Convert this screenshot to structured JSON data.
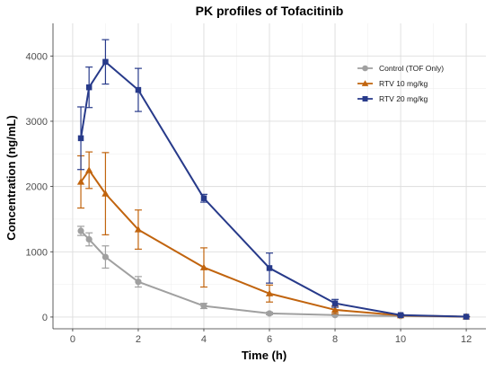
{
  "chart_data": {
    "type": "line",
    "title": "PK profiles of Tofacitinib",
    "xlabel": "Time (h)",
    "ylabel": "Concentration (ng/mL)",
    "xlim": [
      -0.6,
      12.6
    ],
    "ylim": [
      -180,
      4500
    ],
    "xticks": [
      0,
      2,
      4,
      6,
      8,
      10,
      12
    ],
    "yticks": [
      0,
      1000,
      2000,
      3000,
      4000
    ],
    "grid": true,
    "legend_position": "top-right",
    "series": [
      {
        "name": "Control (TOF Only)",
        "color": "#a0a0a0",
        "marker": "circle",
        "x": [
          0.25,
          0.5,
          1,
          2,
          4,
          6,
          8,
          10,
          12
        ],
        "y": [
          1320,
          1190,
          920,
          540,
          170,
          55,
          30,
          15,
          5
        ],
        "err": [
          70,
          100,
          170,
          80,
          40,
          20,
          10,
          5,
          3
        ]
      },
      {
        "name": "RTV 10 mg/kg",
        "color": "#c1640e",
        "marker": "triangle",
        "x": [
          0.25,
          0.5,
          1,
          2,
          4,
          6,
          8,
          10,
          12
        ],
        "y": [
          2070,
          2250,
          1890,
          1340,
          760,
          360,
          110,
          25,
          5
        ],
        "err": [
          400,
          280,
          630,
          300,
          300,
          130,
          60,
          12,
          3
        ]
      },
      {
        "name": "RTV 20 mg/kg",
        "color": "#273a8a",
        "marker": "square",
        "x": [
          0.25,
          0.5,
          1,
          2,
          4,
          6,
          8,
          10,
          12
        ],
        "y": [
          2740,
          3520,
          3910,
          3480,
          1820,
          750,
          210,
          30,
          5
        ],
        "err": [
          480,
          310,
          340,
          330,
          60,
          230,
          60,
          12,
          3
        ]
      }
    ]
  }
}
